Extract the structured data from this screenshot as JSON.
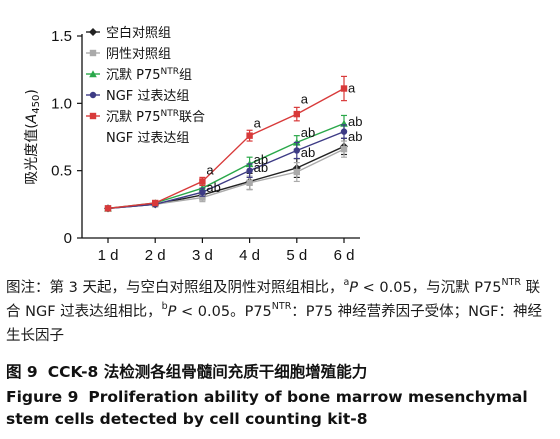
{
  "chart_data": {
    "type": "line",
    "ylabel_prefix": "吸光度值(",
    "ylabel_var": "A",
    "ylabel_sub": "450",
    "ylabel_suffix": ")",
    "ylim": [
      0,
      1.5
    ],
    "yticks": [
      "0",
      "0.5",
      "1.0",
      "1.5"
    ],
    "ytick_values": [
      0,
      0.5,
      1.0,
      1.5
    ],
    "categories": [
      "1 d",
      "2 d",
      "3 d",
      "4 d",
      "5 d",
      "6 d"
    ],
    "legend_placement": "top-left",
    "series": [
      {
        "name": "空白对照组",
        "color": "#222222",
        "marker": "diamond",
        "values": [
          0.22,
          0.25,
          0.32,
          0.42,
          0.52,
          0.68
        ],
        "errors": [
          0.01,
          0.01,
          0.03,
          0.06,
          0.07,
          0.06
        ]
      },
      {
        "name": "阴性对照组",
        "color": "#aaaaaa",
        "marker": "square",
        "values": [
          0.22,
          0.25,
          0.3,
          0.41,
          0.49,
          0.66
        ],
        "errors": [
          0.01,
          0.01,
          0.03,
          0.05,
          0.07,
          0.06
        ]
      },
      {
        "name": "沉默 P75",
        "name_sup": "NTR",
        "name_suffix": "组",
        "color": "#2aa84a",
        "marker": "triangle",
        "values": [
          0.22,
          0.26,
          0.37,
          0.55,
          0.71,
          0.85
        ],
        "errors": [
          0.01,
          0.01,
          0.03,
          0.05,
          0.05,
          0.06
        ]
      },
      {
        "name": "NGF 过表达组",
        "color": "#3d3b85",
        "marker": "circle",
        "values": [
          0.22,
          0.25,
          0.34,
          0.5,
          0.65,
          0.79
        ],
        "errors": [
          0.01,
          0.01,
          0.03,
          0.05,
          0.06,
          0.05
        ]
      },
      {
        "name": "沉默 P75",
        "name_sup": "NTR",
        "name_suffix": "联合",
        "name_line2": "NGF 过表达组",
        "color": "#d83a3a",
        "marker": "square",
        "values": [
          0.22,
          0.26,
          0.42,
          0.76,
          0.92,
          1.11
        ],
        "errors": [
          0.01,
          0.01,
          0.03,
          0.04,
          0.05,
          0.09
        ]
      }
    ],
    "annotations": [
      {
        "text": "a",
        "x": "3 d",
        "y": 0.5
      },
      {
        "text": "ab",
        "x": "3 d",
        "y": 0.37
      },
      {
        "text": "a",
        "x": "4 d",
        "y": 0.85
      },
      {
        "text": "ab",
        "x": "4 d",
        "y": 0.58
      },
      {
        "text": "ab",
        "x": "4 d",
        "y": 0.52
      },
      {
        "text": "a",
        "x": "5 d",
        "y": 1.03
      },
      {
        "text": "ab",
        "x": "5 d",
        "y": 0.78
      },
      {
        "text": "ab",
        "x": "5 d",
        "y": 0.63
      },
      {
        "text": "a",
        "x": "6 d",
        "y": 1.11
      },
      {
        "text": "ab",
        "x": "6 d",
        "y": 0.86
      },
      {
        "text": "ab",
        "x": "6 d",
        "y": 0.75
      }
    ]
  },
  "note": {
    "part1": "图注：第 3 天起，与空白对照组及阴性对照组相比，",
    "sup_a": "a",
    "p_a": "P",
    "part2": " < 0.05，与沉默 P75",
    "sup_ntr1": "NTR",
    "part3": " 联合 NGF 过表达组相比，",
    "sup_b": "b",
    "p_b": "P",
    "part4": " < 0.05。P75",
    "sup_ntr2": "NTR",
    "part5": "：P75 神经营养因子受体；NGF：神经生长因子"
  },
  "caption": {
    "cn_label": "图 9",
    "cn_text": "CCK-8 法检测各组骨髓间充质干细胞增殖能力",
    "en_label": "Figure 9",
    "en_text": "Proliferation ability of bone marrow mesenchymal stem cells detected by cell counting kit-8"
  }
}
